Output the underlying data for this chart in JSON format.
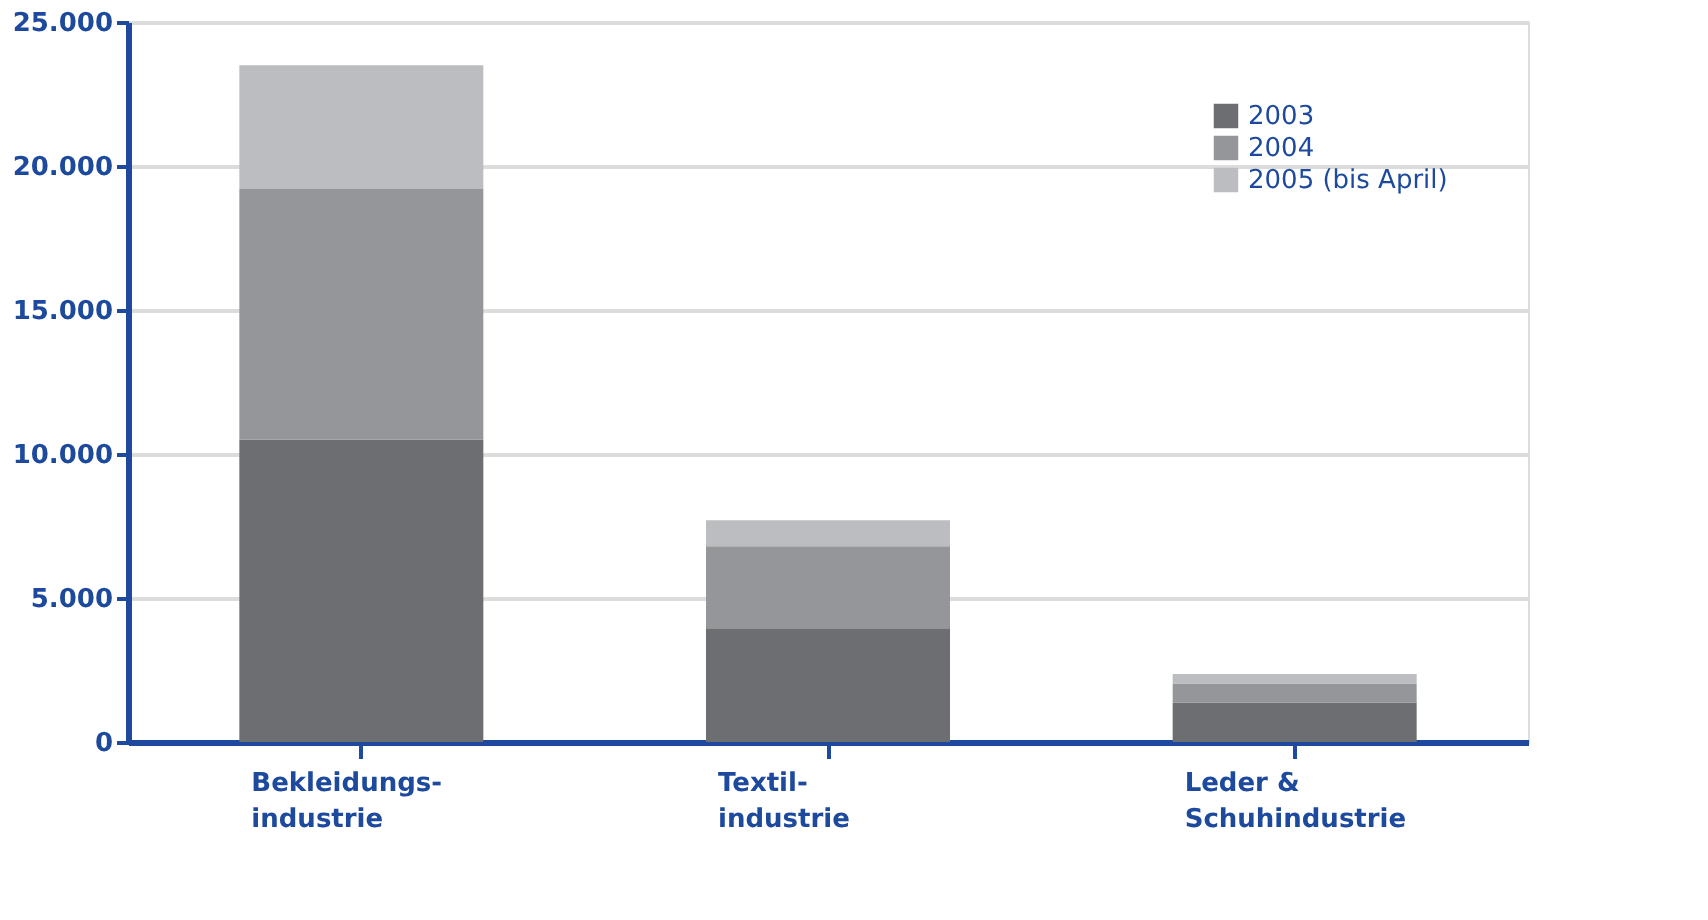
{
  "chart_data": {
    "type": "bar",
    "stacked": true,
    "categories": [
      "Bekleidungs-\nindustrie",
      "Textil-\nindustrie",
      "Leder &\nSchuhindustrie"
    ],
    "series": [
      {
        "name": "2003",
        "color": "#6d6e71",
        "values": [
          10500,
          3950,
          1370
        ]
      },
      {
        "name": "2004",
        "color": "#959699",
        "values": [
          8700,
          2850,
          660
        ]
      },
      {
        "name": "2005 (bis April)",
        "color": "#bcbdc0",
        "values": [
          4300,
          900,
          330
        ]
      }
    ],
    "ylim": [
      0,
      25000
    ],
    "yticks": [
      0,
      {
        "value": 5000,
        "label": "5.000"
      },
      {
        "value": 10000,
        "label": "10.000"
      },
      {
        "value": 15000,
        "label": "15.000"
      },
      {
        "value": 20000,
        "label": "20.000"
      },
      {
        "value": 25000,
        "label": "25.000"
      }
    ],
    "grid": "y",
    "legend": "top right"
  }
}
